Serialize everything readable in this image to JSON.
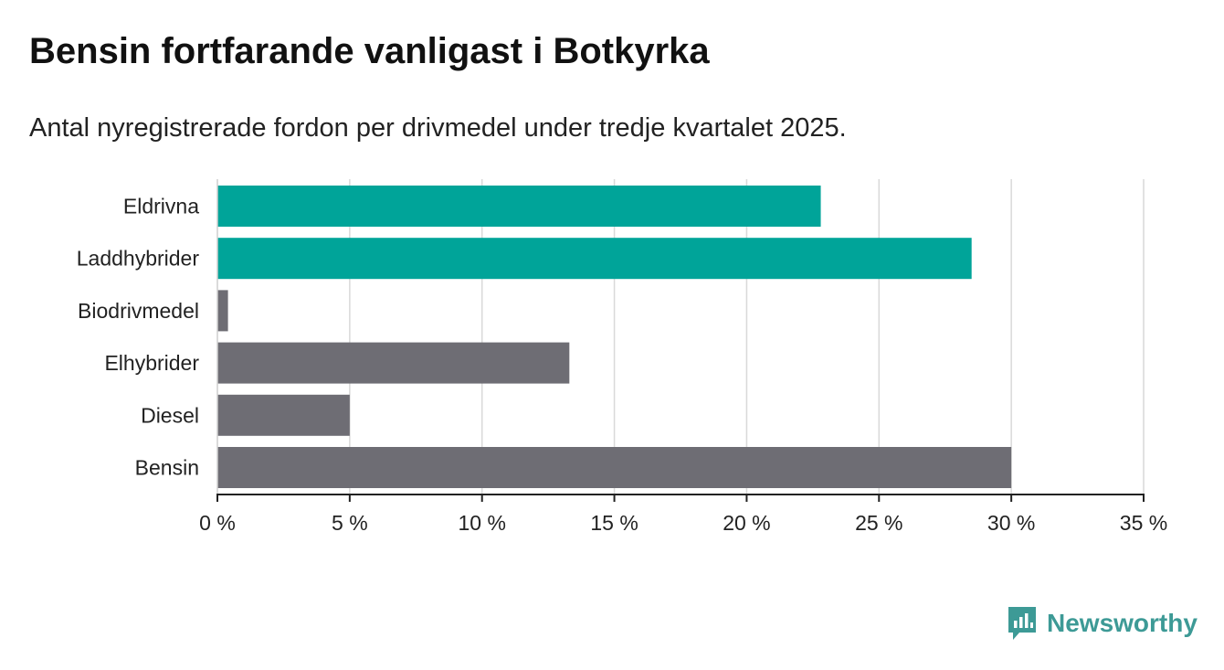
{
  "title": "Bensin fortfarande vanligast i Botkyrka",
  "subtitle": "Antal nyregistrerade fordon per drivmedel under tredje kvartalet 2025.",
  "brand": {
    "name": "Newsworthy",
    "icon": "newsworthy-logo-icon",
    "color": "#3d9a96"
  },
  "chart_data": {
    "type": "bar",
    "orientation": "horizontal",
    "categories": [
      "Eldrivna",
      "Laddhybrider",
      "Biodrivmedel",
      "Elhybrider",
      "Diesel",
      "Bensin"
    ],
    "values": [
      22.8,
      28.5,
      0.4,
      13.3,
      5.0,
      30.0
    ],
    "colors": [
      "#00a499",
      "#00a499",
      "#6e6d74",
      "#6e6d74",
      "#6e6d74",
      "#6e6d74"
    ],
    "xlim": [
      0,
      35
    ],
    "xticks": [
      0,
      5,
      10,
      15,
      20,
      25,
      30,
      35
    ],
    "xtick_labels": [
      "0 %",
      "5 %",
      "10 %",
      "15 %",
      "20 %",
      "25 %",
      "30 %",
      "35 %"
    ],
    "grid": true,
    "xlabel": "",
    "ylabel": ""
  }
}
